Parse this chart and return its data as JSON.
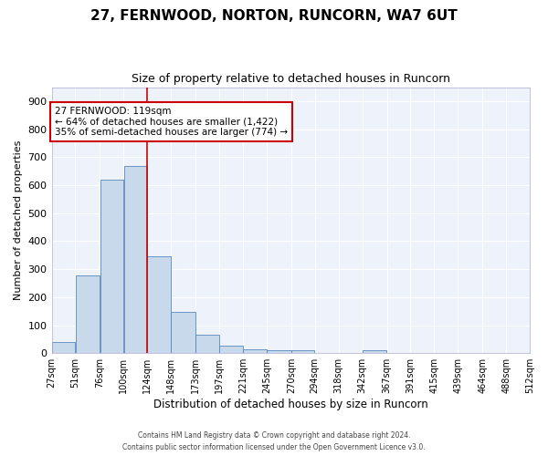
{
  "title": "27, FERNWOOD, NORTON, RUNCORN, WA7 6UT",
  "subtitle": "Size of property relative to detached houses in Runcorn",
  "xlabel": "Distribution of detached houses by size in Runcorn",
  "ylabel": "Number of detached properties",
  "bar_color": "#c9d9ec",
  "bar_edge_color": "#5588bb",
  "bg_color": "#eef2fa",
  "grid_color": "#ffffff",
  "bin_edges": [
    27,
    51,
    76,
    100,
    124,
    148,
    173,
    197,
    221,
    245,
    270,
    294,
    318,
    342,
    367,
    391,
    415,
    439,
    464,
    488,
    512
  ],
  "bin_labels": [
    "27sqm",
    "51sqm",
    "76sqm",
    "100sqm",
    "124sqm",
    "148sqm",
    "173sqm",
    "197sqm",
    "221sqm",
    "245sqm",
    "270sqm",
    "294sqm",
    "318sqm",
    "342sqm",
    "367sqm",
    "391sqm",
    "415sqm",
    "439sqm",
    "464sqm",
    "488sqm",
    "512sqm"
  ],
  "values": [
    40,
    278,
    621,
    670,
    345,
    147,
    65,
    28,
    15,
    12,
    12,
    0,
    0,
    10,
    0,
    0,
    0,
    0,
    0,
    0
  ],
  "ylim": [
    0,
    950
  ],
  "yticks": [
    0,
    100,
    200,
    300,
    400,
    500,
    600,
    700,
    800,
    900
  ],
  "vline_x": 124,
  "annotation_text": "27 FERNWOOD: 119sqm\n← 64% of detached houses are smaller (1,422)\n35% of semi-detached houses are larger (774) →",
  "annotation_box_color": "#ffffff",
  "annotation_box_edge": "#cc0000",
  "vline_color": "#cc0000",
  "footer1": "Contains HM Land Registry data © Crown copyright and database right 2024.",
  "footer2": "Contains public sector information licensed under the Open Government Licence v3.0."
}
